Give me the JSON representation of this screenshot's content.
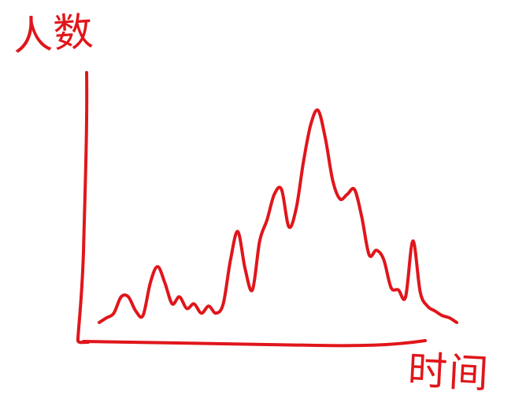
{
  "chart_data": {
    "type": "line",
    "title": "",
    "xlabel": "时间",
    "ylabel": "人数",
    "grid": false,
    "legend": "none",
    "color": "#e0161b",
    "x": [
      1,
      2,
      3,
      4,
      5,
      6,
      7,
      8,
      9,
      10,
      11,
      12,
      13,
      14,
      15,
      16,
      17,
      18,
      19,
      20,
      21,
      22,
      23,
      24,
      25,
      26,
      27,
      28,
      29,
      30,
      31,
      32,
      33,
      34,
      35,
      36,
      37,
      38,
      39,
      40,
      41,
      42,
      43,
      44,
      45,
      46,
      47,
      48,
      49,
      50
    ],
    "series": [
      {
        "values": [
          1,
          3,
          5,
          12,
          12,
          6,
          4,
          18,
          25,
          18,
          9,
          12,
          7,
          9,
          5,
          8,
          5,
          9,
          28,
          40,
          24,
          15,
          36,
          45,
          56,
          58,
          42,
          50,
          70,
          86,
          92,
          80,
          62,
          54,
          56,
          58,
          46,
          30,
          32,
          28,
          16,
          15,
          12,
          36,
          14,
          8,
          6,
          4,
          3,
          1
        ]
      }
    ]
  }
}
